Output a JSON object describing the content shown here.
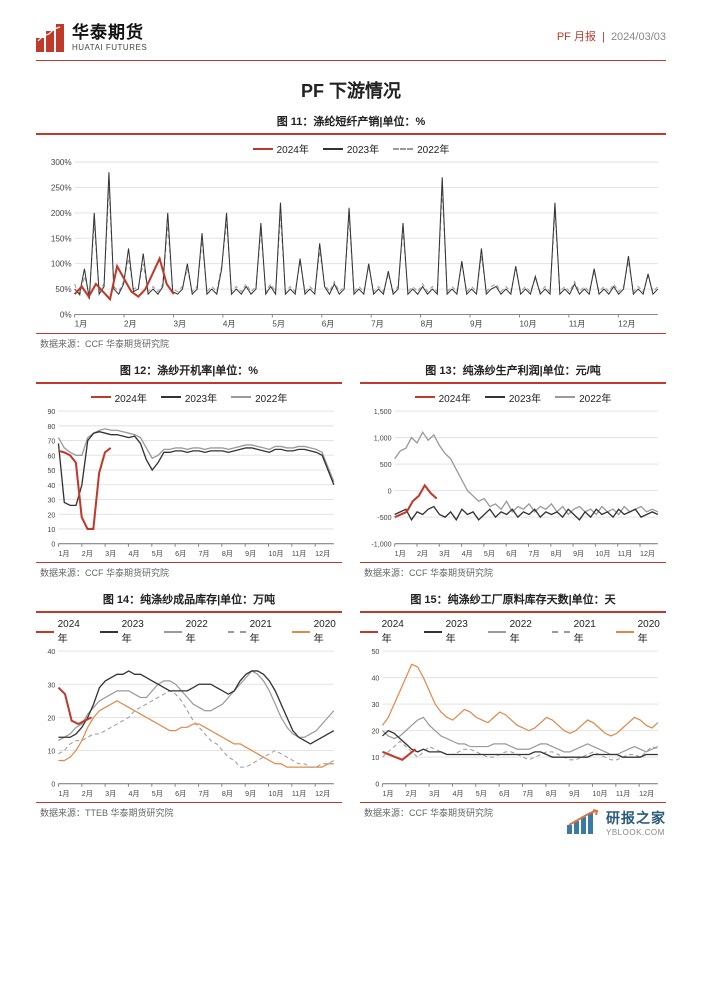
{
  "header": {
    "logo_cn": "华泰期货",
    "logo_en": "HUATAI FUTURES",
    "tag": "PF 月报",
    "date": "2024/03/03"
  },
  "section_title": "PF 下游情况",
  "colors": {
    "accent": "#c0392b",
    "series_2024": "#c0392b",
    "series_2023": "#333333",
    "series_2022": "#9a9a9a",
    "series_2021": "#9a9a9a",
    "series_2020": "#e08a4a",
    "grid": "#e3e3e3",
    "axis": "#888888",
    "text": "#222222"
  },
  "months": [
    "1月",
    "2月",
    "3月",
    "4月",
    "5月",
    "6月",
    "7月",
    "8月",
    "9月",
    "10月",
    "11月",
    "12月"
  ],
  "chart11": {
    "title": "图 11：涤纶短纤产销|单位：%",
    "source": "数据来源：CCF 华泰期货研究院",
    "legend": [
      {
        "label": "2024年",
        "color": "#c0392b",
        "dash": "none"
      },
      {
        "label": "2023年",
        "color": "#333333",
        "dash": "none"
      },
      {
        "label": "2022年",
        "color": "#9a9a9a",
        "dash": "4,3"
      }
    ],
    "ylim": [
      0,
      300
    ],
    "ytick_step": 50,
    "series": {
      "y2024": [
        40,
        55,
        35,
        60,
        45,
        30,
        95,
        70,
        45,
        35,
        50,
        80,
        110,
        60,
        40
      ],
      "y2023": [
        50,
        40,
        90,
        30,
        200,
        40,
        55,
        280,
        50,
        40,
        60,
        130,
        45,
        50,
        120,
        40,
        50,
        40,
        55,
        200,
        45,
        40,
        50,
        100,
        40,
        50,
        160,
        40,
        50,
        40,
        90,
        200,
        40,
        50,
        40,
        55,
        40,
        50,
        180,
        40,
        55,
        40,
        220,
        40,
        50,
        40,
        110,
        40,
        50,
        40,
        140,
        55,
        40,
        60,
        40,
        50,
        210,
        40,
        50,
        40,
        100,
        40,
        50,
        40,
        85,
        40,
        50,
        180,
        40,
        50,
        40,
        55,
        40,
        50,
        40,
        270,
        40,
        50,
        40,
        105,
        40,
        50,
        40,
        130,
        40,
        50,
        55,
        40,
        50,
        40,
        95,
        40,
        50,
        40,
        75,
        40,
        50,
        40,
        220,
        40,
        50,
        40,
        60,
        40,
        50,
        40,
        90,
        40,
        50,
        40,
        55,
        40,
        50,
        115,
        40,
        50,
        40,
        80,
        40,
        50
      ],
      "y2022": [
        60,
        35,
        75,
        40,
        180,
        45,
        60,
        250,
        55,
        45,
        65,
        110,
        50,
        55,
        100,
        45,
        55,
        45,
        60,
        175,
        50,
        45,
        55,
        90,
        45,
        55,
        145,
        45,
        55,
        45,
        95,
        180,
        45,
        55,
        45,
        60,
        45,
        55,
        165,
        45,
        60,
        45,
        195,
        45,
        55,
        45,
        105,
        45,
        55,
        45,
        125,
        60,
        45,
        65,
        45,
        55,
        190,
        45,
        55,
        45,
        95,
        45,
        55,
        45,
        80,
        45,
        55,
        165,
        45,
        55,
        45,
        60,
        45,
        55,
        45,
        245,
        45,
        55,
        45,
        100,
        45,
        55,
        45,
        115,
        45,
        55,
        60,
        45,
        55,
        45,
        90,
        45,
        55,
        45,
        70,
        45,
        55,
        45,
        200,
        45,
        55,
        45,
        65,
        45,
        55,
        45,
        85,
        45,
        55,
        45,
        60,
        45,
        55,
        105,
        45,
        55,
        45,
        75,
        45,
        55
      ]
    }
  },
  "chart12": {
    "title": "图 12：涤纱开机率|单位：%",
    "source": "数据来源：CCF 华泰期货研究院",
    "legend": [
      {
        "label": "2024年",
        "color": "#c0392b",
        "dash": "none"
      },
      {
        "label": "2023年",
        "color": "#333333",
        "dash": "none"
      },
      {
        "label": "2022年",
        "color": "#9a9a9a",
        "dash": "none"
      }
    ],
    "ylim": [
      0,
      90
    ],
    "ytick_step": 10,
    "series": {
      "y2024": [
        63,
        62,
        60,
        55,
        18,
        10,
        10,
        48,
        62,
        65
      ],
      "y2023": [
        68,
        28,
        26,
        26,
        40,
        70,
        75,
        76,
        75,
        74,
        74,
        73,
        72,
        73,
        68,
        57,
        50,
        55,
        62,
        62,
        63,
        63,
        62,
        63,
        63,
        62,
        63,
        63,
        63,
        62,
        63,
        64,
        65,
        65,
        64,
        63,
        62,
        64,
        64,
        63,
        63,
        64,
        64,
        63,
        62,
        60,
        50,
        40
      ],
      "y2022": [
        72,
        65,
        62,
        60,
        60,
        72,
        75,
        77,
        78,
        77,
        77,
        76,
        75,
        74,
        72,
        65,
        58,
        60,
        64,
        64,
        65,
        65,
        64,
        65,
        65,
        64,
        65,
        65,
        65,
        64,
        65,
        66,
        67,
        67,
        66,
        65,
        64,
        66,
        66,
        65,
        65,
        66,
        66,
        65,
        64,
        62,
        52,
        42
      ]
    }
  },
  "chart13": {
    "title": "图 13：纯涤纱生产利润|单位：元/吨",
    "source": "数据来源：CCF 华泰期货研究院",
    "legend": [
      {
        "label": "2024年",
        "color": "#c0392b",
        "dash": "none"
      },
      {
        "label": "2023年",
        "color": "#333333",
        "dash": "none"
      },
      {
        "label": "2022年",
        "color": "#9a9a9a",
        "dash": "none"
      }
    ],
    "ylim": [
      -1000,
      1500
    ],
    "ytick_step": 500,
    "series": {
      "y2024": [
        -500,
        -450,
        -400,
        -200,
        -100,
        100,
        -50,
        -150
      ],
      "y2023": [
        -450,
        -400,
        -350,
        -550,
        -400,
        -450,
        -350,
        -300,
        -450,
        -500,
        -400,
        -550,
        -350,
        -450,
        -400,
        -550,
        -450,
        -350,
        -500,
        -400,
        -450,
        -350,
        -500,
        -400,
        -450,
        -350,
        -500,
        -400,
        -450,
        -400,
        -500,
        -350,
        -450,
        -550,
        -400,
        -500,
        -350,
        -450,
        -400,
        -500,
        -350,
        -450,
        -400,
        -350,
        -500,
        -450,
        -400,
        -450
      ],
      "y2022": [
        600,
        750,
        800,
        1000,
        900,
        1100,
        950,
        1050,
        850,
        700,
        600,
        400,
        200,
        0,
        -100,
        -200,
        -150,
        -300,
        -250,
        -350,
        -200,
        -400,
        -300,
        -350,
        -250,
        -400,
        -300,
        -350,
        -250,
        -400,
        -300,
        -450,
        -350,
        -300,
        -400,
        -350,
        -450,
        -300,
        -400,
        -350,
        -450,
        -300,
        -400,
        -350,
        -300,
        -400,
        -350,
        -400
      ]
    }
  },
  "chart14": {
    "title": "图 14：纯涤纱成品库存|单位：万吨",
    "source": "数据来源：TTEB 华泰期货研究院",
    "legend": [
      {
        "label": "2024年",
        "color": "#c0392b",
        "dash": "none"
      },
      {
        "label": "2023年",
        "color": "#333333",
        "dash": "none"
      },
      {
        "label": "2022年",
        "color": "#9a9a9a",
        "dash": "none"
      },
      {
        "label": "2021年",
        "color": "#9a9a9a",
        "dash": "4,3"
      },
      {
        "label": "2020年",
        "color": "#e08a4a",
        "dash": "none"
      }
    ],
    "ylim": [
      0,
      40
    ],
    "ytick_step": 10,
    "series": {
      "y2024": [
        29,
        27,
        19,
        18,
        19,
        20
      ],
      "y2023": [
        14,
        14,
        14,
        15,
        17,
        20,
        24,
        29,
        31,
        32,
        33,
        33,
        34,
        33,
        33,
        32,
        31,
        30,
        29,
        28,
        28,
        28,
        28,
        29,
        30,
        30,
        30,
        29,
        28,
        27,
        28,
        31,
        33,
        34,
        34,
        33,
        31,
        28,
        24,
        20,
        16,
        14,
        13,
        12,
        13,
        14,
        15,
        16
      ],
      "y2022": [
        13,
        14,
        15,
        17,
        18,
        21,
        23,
        25,
        26,
        27,
        28,
        28,
        28,
        27,
        26,
        26,
        28,
        30,
        31,
        31,
        30,
        28,
        26,
        24,
        23,
        22,
        22,
        23,
        24,
        26,
        28,
        30,
        32,
        34,
        33,
        31,
        28,
        24,
        20,
        17,
        15,
        14,
        14,
        15,
        16,
        18,
        20,
        22
      ],
      "y2021": [
        9,
        10,
        12,
        13,
        13,
        14,
        15,
        15,
        16,
        17,
        18,
        19,
        20,
        22,
        23,
        24,
        25,
        26,
        27,
        28,
        27,
        25,
        22,
        19,
        17,
        15,
        13,
        12,
        10,
        8,
        7,
        5,
        5,
        6,
        7,
        8,
        9,
        10,
        9,
        8,
        7,
        6,
        6,
        5,
        5,
        6,
        6,
        7
      ],
      "y2020": [
        7,
        7,
        8,
        10,
        13,
        17,
        20,
        22,
        23,
        24,
        25,
        24,
        23,
        22,
        21,
        20,
        19,
        18,
        17,
        16,
        16,
        17,
        17,
        18,
        18,
        17,
        16,
        15,
        14,
        13,
        12,
        12,
        11,
        10,
        9,
        8,
        7,
        6,
        6,
        5,
        5,
        5,
        5,
        5,
        5,
        5,
        6,
        6
      ]
    }
  },
  "chart15": {
    "title": "图 15：纯涤纱工厂原料库存天数|单位：天",
    "source": "数据来源：CCF 华泰期货研究院",
    "legend": [
      {
        "label": "2024年",
        "color": "#c0392b",
        "dash": "none"
      },
      {
        "label": "2023年",
        "color": "#333333",
        "dash": "none"
      },
      {
        "label": "2022年",
        "color": "#9a9a9a",
        "dash": "none"
      },
      {
        "label": "2021年",
        "color": "#9a9a9a",
        "dash": "4,3"
      },
      {
        "label": "2020年",
        "color": "#e08a4a",
        "dash": "none"
      }
    ],
    "ylim": [
      0,
      50
    ],
    "ytick_step": 10,
    "series": {
      "y2024": [
        12,
        11,
        10,
        9,
        11,
        13
      ],
      "y2023": [
        18,
        20,
        19,
        17,
        15,
        13,
        12,
        13,
        12,
        12,
        12,
        11,
        11,
        11,
        11,
        11,
        11,
        11,
        11,
        11,
        11,
        11,
        11,
        11,
        11,
        11,
        12,
        12,
        11,
        10,
        10,
        10,
        10,
        10,
        10,
        10,
        11,
        11,
        11,
        11,
        11,
        10,
        10,
        10,
        10,
        11,
        11,
        11
      ],
      "y2022": [
        20,
        18,
        17,
        18,
        20,
        22,
        24,
        25,
        22,
        20,
        18,
        17,
        16,
        15,
        15,
        14,
        14,
        14,
        14,
        15,
        15,
        15,
        14,
        13,
        13,
        13,
        14,
        15,
        15,
        14,
        13,
        12,
        12,
        13,
        14,
        15,
        14,
        13,
        12,
        11,
        11,
        12,
        13,
        14,
        13,
        12,
        13,
        14
      ],
      "y2021": [
        10,
        12,
        14,
        16,
        14,
        12,
        10,
        12,
        14,
        13,
        12,
        11,
        11,
        12,
        13,
        13,
        12,
        11,
        10,
        10,
        11,
        12,
        12,
        11,
        10,
        9,
        10,
        11,
        12,
        12,
        11,
        10,
        9,
        9,
        10,
        11,
        12,
        11,
        10,
        9,
        9,
        10,
        11,
        11,
        10,
        12,
        14,
        13
      ],
      "y2020": [
        22,
        25,
        30,
        35,
        40,
        45,
        44,
        40,
        35,
        30,
        27,
        25,
        24,
        26,
        28,
        27,
        25,
        24,
        23,
        25,
        27,
        26,
        24,
        22,
        21,
        20,
        21,
        23,
        25,
        24,
        22,
        20,
        19,
        20,
        22,
        24,
        23,
        21,
        19,
        18,
        19,
        21,
        23,
        25,
        24,
        22,
        21,
        23
      ]
    }
  },
  "footer": {
    "cn": "研报之家",
    "dom": "YBLOOK.COM"
  }
}
